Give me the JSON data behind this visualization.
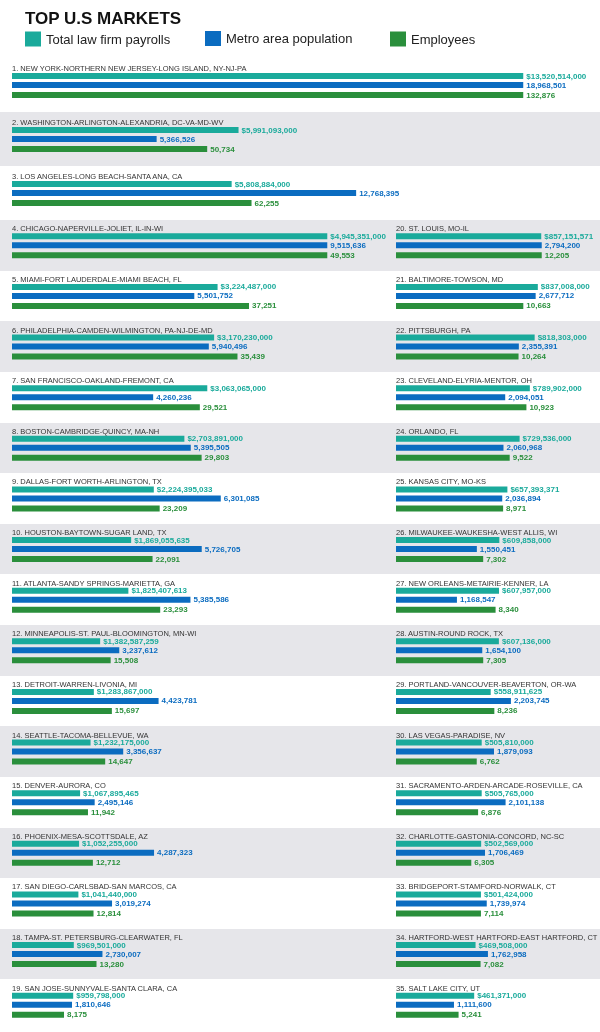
{
  "chart_data": [
    {
      "type": "bar",
      "orientation": "horizontal",
      "title": "TOP U.S MARKETS",
      "legend": "top left",
      "categories": [
        "1. NEW YORK-NORTHERN NEW JERSEY-LONG ISLAND, NY-NJ-PA",
        "2. WASHINGTON-ARLINGTON-ALEXANDRIA, DC-VA-MD-WV",
        "3. LOS ANGELES-LONG BEACH-SANTA ANA, CA"
      ],
      "series": [
        {
          "name": "Total law firm payrolls",
          "color": "#1aaa9b",
          "values": [
            13520514000,
            5991093000,
            5808884000
          ],
          "value_labels": [
            "$13,520,514,000",
            "$5,991,093,000",
            "$5,808,884,000"
          ]
        }
      ]
    },
    {
      "type": "bar",
      "orientation": "horizontal",
      "legend": "top",
      "categories": [
        null,
        null,
        null
      ],
      "series": [
        {
          "name": "Metro area population",
          "color": "#0b6cc0",
          "values": [
            18968501,
            5366526,
            12768395
          ],
          "value_labels": [
            "18,968,501",
            "5,366,526",
            "12,768,395"
          ]
        }
      ]
    },
    {
      "type": "bar",
      "orientation": "horizontal",
      "legend": "top right",
      "categories": [
        null,
        null,
        null
      ],
      "series": [
        {
          "name": "Employees",
          "color": "#2a8f3c",
          "values": [
            132876,
            50734,
            62255
          ],
          "value_labels": [
            "132,876",
            "50,734",
            "62,255"
          ]
        }
      ]
    },
    {
      "type": "bar",
      "orientation": "horizontal",
      "categories": [
        "4. CHICAGO-NAPERVILLE-JOLIET, IL-IN-WI",
        "5. MIAMI-FORT LAUDERDALE-MIAMI BEACH, FL",
        "6. PHILADELPHIA-CAMDEN-WILMINGTON, PA-NJ-DE-MD",
        "7. SAN FRANCISCO-OAKLAND-FREMONT, CA",
        "8. BOSTON-CAMBRIDGE-QUINCY, MA-NH",
        "9. DALLAS-FORT WORTH-ARLINGTON, TX",
        "10. HOUSTON-BAYTOWN-SUGAR LAND, TX",
        "11. ATLANTA-SANDY SPRINGS-MARIETTA, GA",
        "12. MINNEAPOLIS-ST. PAUL-BLOOMINGTON, MN-WI",
        "13. DETROIT-WARREN-LIVONIA, MI",
        "14. SEATTLE-TACOMA-BELLEVUE, WA",
        "15. DENVER-AURORA, CO",
        "16. PHOENIX-MESA-SCOTTSDALE, AZ",
        "17. SAN DIEGO-CARLSBAD-SAN MARCOS, CA",
        "18. TAMPA-ST. PETERSBURG-CLEARWATER, FL",
        "19. SAN JOSE-SUNNYVALE-SANTA CLARA, CA"
      ],
      "series": [
        {
          "color": "#1aaa9b",
          "values": [
            4945351000,
            3224487000,
            3170230000,
            3063065000,
            2703891000,
            2224395033,
            1869055635,
            1825407613,
            1382587259,
            1283867000,
            1232175000,
            1067895465,
            1052255000,
            1041440000,
            969501000,
            959798000
          ],
          "value_labels": [
            "$4,945,351,000",
            "$3,224,487,000",
            "$3,170,230,000",
            "$3,063,065,000",
            "$2,703,891,000",
            "$2,224,395,033",
            "$1,869,055,635",
            "$1,825,407,613",
            "$1,382,587,259",
            "$1,283,867,000",
            "$1,232,175,000",
            "$1,067,895,465",
            "$1,052,255,000",
            "$1,041,440,000",
            "$969,501,000",
            "$959,798,000"
          ]
        }
      ]
    },
    {
      "type": "bar",
      "orientation": "horizontal",
      "categories": [
        null,
        null,
        null,
        null,
        null,
        null,
        null,
        null,
        null,
        null,
        null,
        null,
        null,
        null,
        null,
        null
      ],
      "series": [
        {
          "color": "#0b6cc0",
          "values": [
            9515636,
            5501752,
            5940496,
            4260236,
            5395505,
            6301085,
            5726705,
            5385586,
            3237612,
            4423781,
            3356637,
            2495146,
            4287323,
            3019274,
            2730007,
            1810646
          ],
          "value_labels": [
            "9,515,636",
            "5,501,752",
            "5,940,496",
            "4,260,236",
            "5,395,505",
            "6,301,085",
            "5,726,705",
            "5,385,586",
            "3,237,612",
            "4,423,781",
            "3,356,637",
            "2,495,146",
            "4,287,323",
            "3,019,274",
            "2,730,007",
            "1,810,646"
          ]
        }
      ]
    },
    {
      "type": "bar",
      "orientation": "horizontal",
      "categories": [
        null,
        null,
        null,
        null,
        null,
        null,
        null,
        null,
        null,
        null,
        null,
        null,
        null,
        null,
        null,
        null
      ],
      "series": [
        {
          "color": "#2a8f3c",
          "values": [
            49553,
            37251,
            35439,
            29521,
            29803,
            23209,
            22091,
            23293,
            15508,
            15697,
            14647,
            11942,
            12712,
            12814,
            13280,
            8175
          ],
          "value_labels": [
            "49,553",
            "37,251",
            "35,439",
            "29,521",
            "29,803",
            "23,209",
            "22,091",
            "23,293",
            "15,508",
            "15,697",
            "14,647",
            "11,942",
            "12,712",
            "12,814",
            "13,280",
            "8,175"
          ]
        }
      ]
    },
    {
      "type": "bar",
      "orientation": "horizontal",
      "categories": [
        "20. ST. LOUIS, MO-IL",
        "21. BALTIMORE-TOWSON, MD",
        "22. PITTSBURGH, PA",
        "23. CLEVELAND-ELYRIA-MENTOR, OH",
        "24. ORLANDO, FL",
        "25. KANSAS CITY, MO-KS",
        "26. MILWAUKEE-WAUKESHA-WEST ALLIS, WI",
        "27. NEW ORLEANS-METAIRIE-KENNER, LA",
        "28. AUSTIN-ROUND ROCK, TX",
        "29. PORTLAND-VANCOUVER-BEAVERTON, OR-WA",
        "30. LAS VEGAS-PARADISE, NV",
        "31. SACRAMENTO-ARDEN-ARCADE-ROSEVILLE, CA",
        "32. CHARLOTTE-GASTONIA-CONCORD, NC-SC",
        "33. BRIDGEPORT-STAMFORD-NORWALK, CT",
        "34. HARTFORD-WEST HARTFORD-EAST HARTFORD, CT",
        "35. SALT LAKE CITY, UT"
      ],
      "series": [
        {
          "color": "#1aaa9b",
          "values": [
            857151571,
            837008000,
            818303000,
            789902000,
            729536000,
            657393371,
            609858000,
            607957000,
            607136000,
            558911625,
            505810000,
            505765000,
            502569000,
            501424000,
            469508000,
            461371000
          ],
          "value_labels": [
            "$857,151,571",
            "$837,008,000",
            "$818,303,000",
            "$789,902,000",
            "$729,536,000",
            "$657,393,371",
            "$609,858,000",
            "$607,957,000",
            "$607,136,000",
            "$558,911,625",
            "$505,810,000",
            "$505,765,000",
            "$502,569,000",
            "$501,424,000",
            "$469,508,000",
            "$461,371,000"
          ]
        }
      ]
    },
    {
      "type": "bar",
      "orientation": "horizontal",
      "categories": [
        null,
        null,
        null,
        null,
        null,
        null,
        null,
        null,
        null,
        null,
        null,
        null,
        null,
        null,
        null,
        null
      ],
      "series": [
        {
          "color": "#0b6cc0",
          "values": [
            2794200,
            2677712,
            2355391,
            2094051,
            2060968,
            2036894,
            1550451,
            1168547,
            1654100,
            2203745,
            1879093,
            2101138,
            1706469,
            1739974,
            1762958,
            1111600
          ],
          "value_labels": [
            "2,794,200",
            "2,677,712",
            "2,355,391",
            "2,094,051",
            "2,060,968",
            "2,036,894",
            "1,550,451",
            "1,168,547",
            "1,654,100",
            "2,203,745",
            "1,879,093",
            "2,101,138",
            "1,706,469",
            "1,739,974",
            "1,762,958",
            "1,111,600"
          ]
        }
      ]
    },
    {
      "type": "bar",
      "orientation": "horizontal",
      "categories": [
        null,
        null,
        null,
        null,
        null,
        null,
        null,
        null,
        null,
        null,
        null,
        null,
        null,
        null,
        null,
        null
      ],
      "series": [
        {
          "color": "#2a8f3c",
          "values": [
            12205,
            10663,
            10264,
            10923,
            9522,
            8971,
            7302,
            8340,
            7305,
            8236,
            6762,
            6876,
            6305,
            7114,
            7082,
            5241
          ],
          "value_labels": [
            "12,205",
            "10,663",
            "10,264",
            "10,923",
            "9,522",
            "8,971",
            "7,302",
            "8,340",
            "7,305",
            "8,236",
            "6,762",
            "6,876",
            "6,305",
            "7,114",
            "7,082",
            "5,241"
          ]
        }
      ]
    }
  ]
}
